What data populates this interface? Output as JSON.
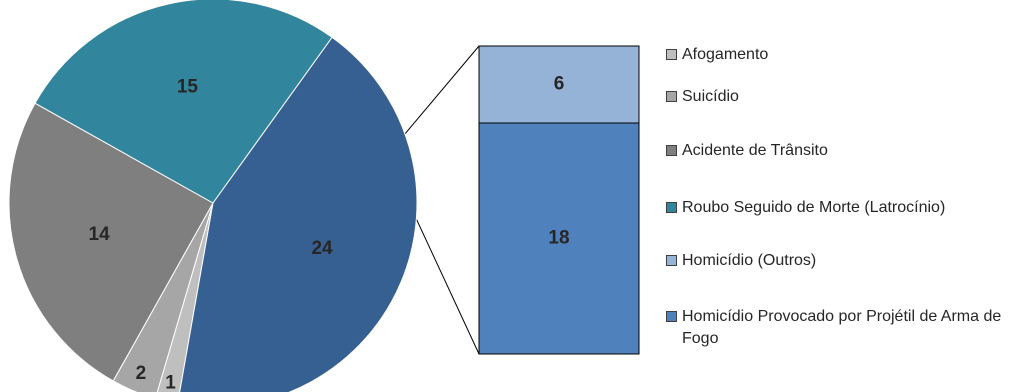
{
  "chart_data": {
    "type": "pie-of-bar",
    "title": "",
    "pie": {
      "slices": [
        {
          "label": "Afogamento",
          "value": 1,
          "color": "#bfbfbf"
        },
        {
          "label": "Suicídio",
          "value": 2,
          "color": "#a6a6a6"
        },
        {
          "label": "Acidente de Trânsito",
          "value": 14,
          "color": "#7f7f7f"
        },
        {
          "label": "Roubo Seguido de Morte (Latrocínio)",
          "value": 15,
          "color": "#31859c"
        },
        {
          "label": "Homicídio",
          "value": 24,
          "color": "#376092"
        }
      ]
    },
    "bar": {
      "of_slice": "Homicídio",
      "segments": [
        {
          "label": "Homicídio (Outros)",
          "value": 6,
          "color": "#95b3d7"
        },
        {
          "label": "Homicídio Provocado por Projétil de Arma de Fogo",
          "value": 18,
          "color": "#4f81bd"
        }
      ]
    },
    "legend": {
      "position": "right",
      "entries": [
        {
          "label": "Afogamento",
          "color": "#bfbfbf"
        },
        {
          "label": "Suicídio",
          "color": "#a6a6a6"
        },
        {
          "label": "Acidente de Trânsito",
          "color": "#7f7f7f"
        },
        {
          "label": "Roubo Seguido de Morte (Latrocínio)",
          "color": "#31859c"
        },
        {
          "label": "Homicídio (Outros)",
          "color": "#95b3d7"
        },
        {
          "label": "Homicídio Provocado por Projétil de Arma de Fogo",
          "color": "#4f81bd"
        }
      ]
    }
  }
}
